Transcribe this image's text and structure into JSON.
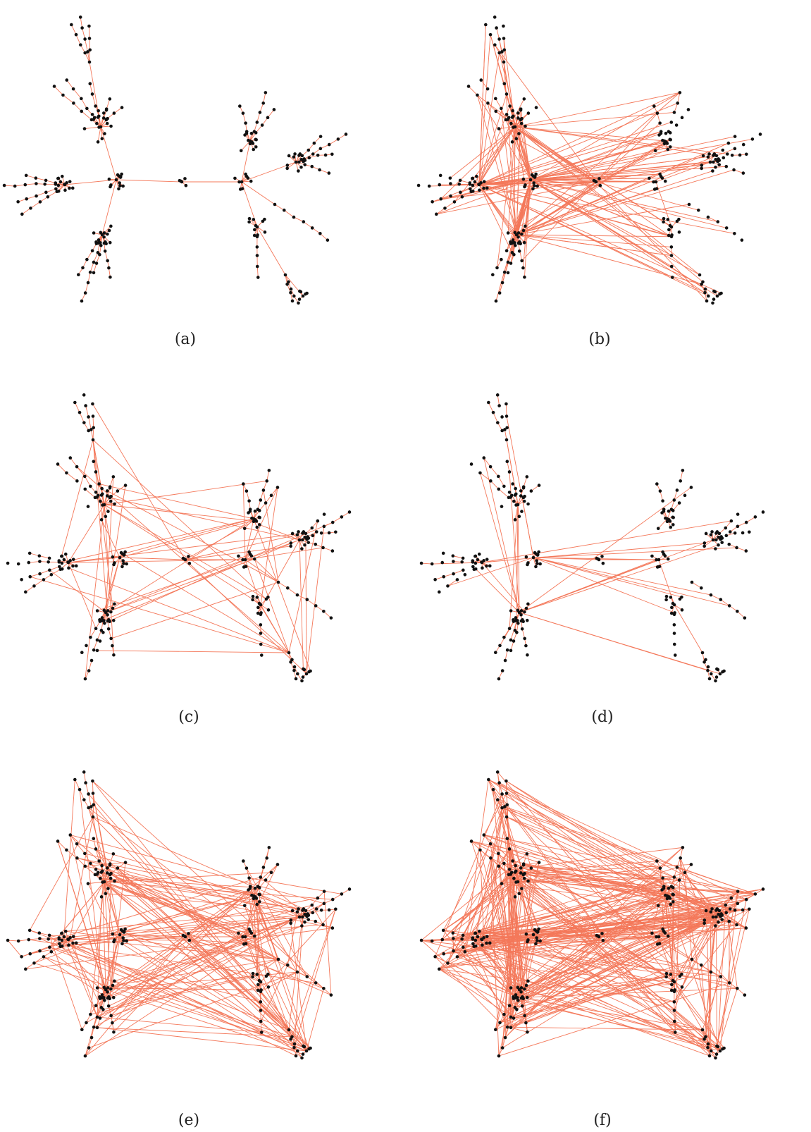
{
  "figure": {
    "edge_color": "#f4785a",
    "node_color": "#111111",
    "panels": [
      {
        "caption": "(a)"
      },
      {
        "caption": "(b)"
      },
      {
        "caption": "(c)"
      },
      {
        "caption": "(d)"
      },
      {
        "caption": "(e)"
      },
      {
        "caption": "(f)"
      }
    ]
  }
}
